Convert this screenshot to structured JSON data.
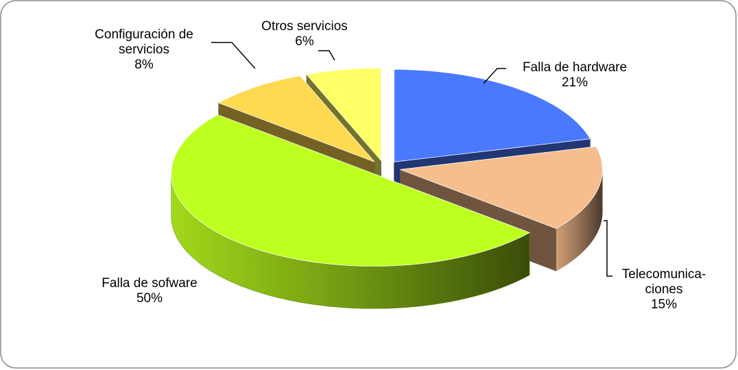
{
  "chart_data": {
    "type": "pie3d",
    "categories": [
      "Falla de hardware",
      "Telecomunica-ciones",
      "Falla de sofware",
      "Configuración de servicios",
      "Otros servicios"
    ],
    "values": [
      21,
      15,
      50,
      8,
      6
    ],
    "value_labels": [
      "21%",
      "15%",
      "50%",
      "8%",
      "6%"
    ],
    "colors": [
      "#4a78ff",
      "#f6bd8e",
      "#bdff1e",
      "#ffd94f",
      "#ffff66"
    ]
  }
}
